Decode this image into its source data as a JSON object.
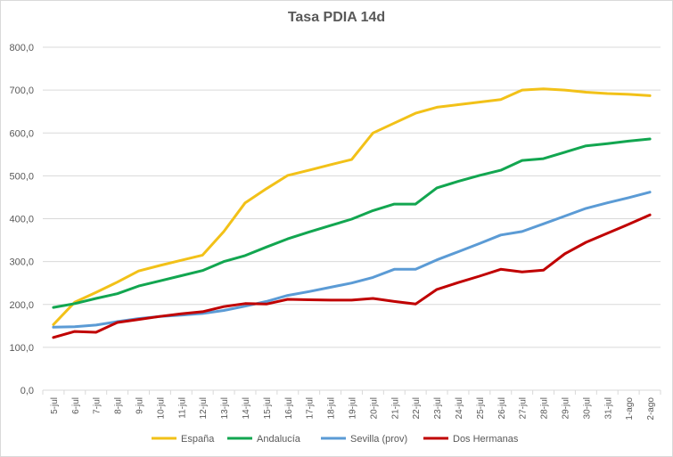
{
  "chart_data": {
    "type": "line",
    "title": "Tasa PDIA 14d",
    "xlabel": "",
    "ylabel": "",
    "ylim": [
      0,
      800
    ],
    "yticks": [
      "0,0",
      "100,0",
      "200,0",
      "300,0",
      "400,0",
      "500,0",
      "600,0",
      "700,0",
      "800,0"
    ],
    "categories": [
      "5-jul",
      "6-jul",
      "7-jul",
      "8-jul",
      "9-jul",
      "10-jul",
      "11-jul",
      "12-jul",
      "13-jul",
      "14-jul",
      "15-jul",
      "16-jul",
      "17-jul",
      "18-jul",
      "19-jul",
      "20-jul",
      "21-jul",
      "22-jul",
      "23-jul",
      "24-jul",
      "25-jul",
      "26-jul",
      "27-jul",
      "28-jul",
      "29-jul",
      "30-jul",
      "31-jul",
      "1-ago",
      "2-ago"
    ],
    "grid": true,
    "legend_position": "bottom",
    "series": [
      {
        "name": "España",
        "color": "#f2c118",
        "values": [
          153,
          205,
          228,
          252,
          278,
          291,
          303,
          315,
          370,
          437,
          470,
          501,
          513,
          526,
          538,
          600,
          623,
          646,
          660,
          666,
          672,
          678,
          700,
          703,
          700,
          695,
          692,
          690,
          687
        ]
      },
      {
        "name": "Andalucía",
        "color": "#12a650",
        "values": [
          193,
          202,
          214,
          225,
          243,
          255,
          267,
          279,
          300,
          314,
          334,
          353,
          369,
          384,
          399,
          419,
          434,
          434,
          472,
          487,
          501,
          513,
          536,
          540,
          555,
          570,
          575,
          581,
          586
        ]
      },
      {
        "name": "Sevilla (prov)",
        "color": "#5b9bd5",
        "values": [
          147,
          148,
          152,
          160,
          167,
          172,
          175,
          179,
          186,
          196,
          207,
          221,
          230,
          240,
          250,
          263,
          282,
          282,
          304,
          323,
          342,
          362,
          370,
          388,
          406,
          424,
          437,
          449,
          462
        ]
      },
      {
        "name": "Dos Hermanas",
        "color": "#c00000",
        "values": [
          123,
          137,
          135,
          158,
          165,
          172,
          178,
          183,
          195,
          202,
          201,
          212,
          211,
          210,
          210,
          214,
          207,
          201,
          235,
          251,
          266,
          282,
          276,
          280,
          318,
          345,
          366,
          387,
          409
        ]
      }
    ]
  }
}
